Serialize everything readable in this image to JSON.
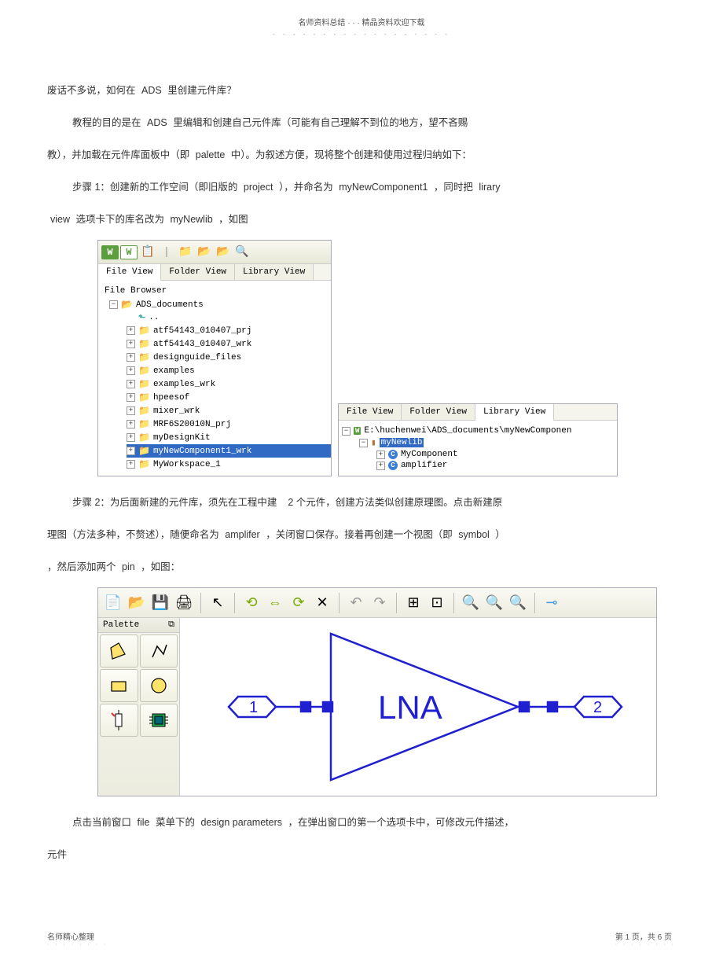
{
  "header": {
    "title": "名师资料总结 · · · 精品资料欢迎下载"
  },
  "paragraphs": {
    "p1_a": "废话不多说，如何在",
    "p1_b": "ADS",
    "p1_c": "里创建元件库？",
    "p2_a": "教程的目的是在",
    "p2_b": "ADS",
    "p2_c": "里编辑和创建自己元件库（可能有自己理解不到位的地方，望不吝赐",
    "p3_a": "教），并加载在元件库面板中（即",
    "p3_b": "palette",
    "p3_c": "中）。为叙述方便，现将整个创建和使用过程归纳如下：",
    "p4_a": "步骤 1：创建新的工作空间（即旧版的",
    "p4_b": "project",
    "p4_c": "），并命名为",
    "p4_d": "myNewComponent1",
    "p4_e": "，同时把",
    "p4_f": "lirary",
    "p5_a": "view",
    "p5_b": "选项卡下的库名改为",
    "p5_c": "myNewlib",
    "p5_d": "，如图",
    "p6_a": "步骤 2：为后面新建的元件库，须先在工程中建",
    "p6_b": "2 个元件，创建方法类似创建原理图。点击新建原",
    "p7_a": "理图（方法多种，不赘述），随便命名为",
    "p7_b": "amplifer",
    "p7_c": "，关闭窗口保存。接着再创建一个视图（即",
    "p7_d": "symbol",
    "p7_e": "）",
    "p8_a": "，然后添加两个",
    "p8_b": "pin",
    "p8_c": "，如图：",
    "p9_a": "点击当前窗口",
    "p9_b": "file",
    "p9_c": "菜单下的",
    "p9_d": "design parameters",
    "p9_e": "，在弹出窗口的第一个选项卡中，可修改元件描述，",
    "p10": "元件"
  },
  "ss1": {
    "tab1": "File View",
    "tab2": "Folder View",
    "tab3": "Library View",
    "browser_title": "File Browser",
    "root": "ADS_documents",
    "up": "..",
    "items": [
      "atf54143_010407_prj",
      "atf54143_010407_wrk",
      "designguide_files",
      "examples",
      "examples_wrk",
      "hpeesof",
      "mixer_wrk",
      "MRF6S20010N_prj",
      "myDesignKit",
      "myNewComponent1_wrk",
      "MyWorkspace_1"
    ],
    "selected_index": 9
  },
  "ss2": {
    "tab1": "File View",
    "tab2": "Folder View",
    "tab3": "Library View",
    "path": "E:\\huchenwei\\ADS_documents\\myNewComponen",
    "lib": "myNewlib",
    "items": [
      "MyComponent",
      "amplifier"
    ]
  },
  "ss3": {
    "palette_title": "Palette",
    "lna_label": "LNA",
    "pin1": "1",
    "pin2": "2",
    "colors": {
      "diagram_stroke": "#2020d0",
      "lna_text": "#2020d0",
      "pin_fill": "#ffffff"
    }
  },
  "footer": {
    "left": "名师精心整理",
    "right": "第 1 页，共 6 页"
  }
}
